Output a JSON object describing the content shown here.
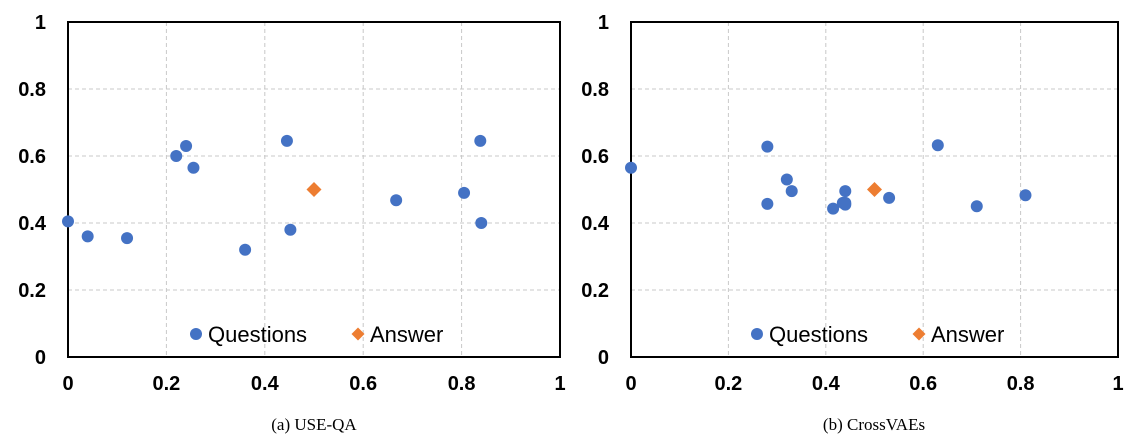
{
  "colors": {
    "questions": "#4472C4",
    "answer": "#ED7D31",
    "grid": "#c8c8c8",
    "axis": "#000000"
  },
  "legend": {
    "questions_label": "Questions",
    "answer_label": "Answer",
    "placement": "bottom-center"
  },
  "chart_data": [
    {
      "type": "scatter",
      "caption": "(a)  USE-QA",
      "xlim": [
        0,
        1
      ],
      "ylim": [
        0,
        1
      ],
      "xticks": [
        "0",
        "0.2",
        "0.4",
        "0.6",
        "0.8",
        "1"
      ],
      "yticks": [
        "0",
        "0.2",
        "0.4",
        "0.6",
        "0.8",
        "1"
      ],
      "grid": true,
      "series": [
        {
          "name": "Questions",
          "marker": "circle",
          "x": [
            0.0,
            0.04,
            0.12,
            0.22,
            0.24,
            0.255,
            0.36,
            0.445,
            0.452,
            0.667,
            0.805,
            0.838,
            0.84
          ],
          "y": [
            0.405,
            0.36,
            0.355,
            0.6,
            0.63,
            0.565,
            0.32,
            0.645,
            0.38,
            0.468,
            0.49,
            0.645,
            0.4
          ]
        },
        {
          "name": "Answer",
          "marker": "diamond",
          "x": [
            0.5
          ],
          "y": [
            0.5
          ]
        }
      ]
    },
    {
      "type": "scatter",
      "caption": "(b)  CrossVAEs",
      "xlim": [
        0,
        1
      ],
      "ylim": [
        0,
        1
      ],
      "xticks": [
        "0",
        "0.2",
        "0.4",
        "0.6",
        "0.8",
        "1"
      ],
      "yticks": [
        "0",
        "0.2",
        "0.4",
        "0.6",
        "0.8",
        "1"
      ],
      "grid": true,
      "series": [
        {
          "name": "Questions",
          "marker": "circle",
          "x": [
            0.0,
            0.28,
            0.28,
            0.32,
            0.33,
            0.415,
            0.435,
            0.44,
            0.44,
            0.44,
            0.53,
            0.63,
            0.71,
            0.81
          ],
          "y": [
            0.565,
            0.628,
            0.457,
            0.53,
            0.495,
            0.443,
            0.46,
            0.46,
            0.495,
            0.455,
            0.475,
            0.632,
            0.45,
            0.483
          ]
        },
        {
          "name": "Answer",
          "marker": "diamond",
          "x": [
            0.5
          ],
          "y": [
            0.5
          ]
        }
      ]
    }
  ]
}
